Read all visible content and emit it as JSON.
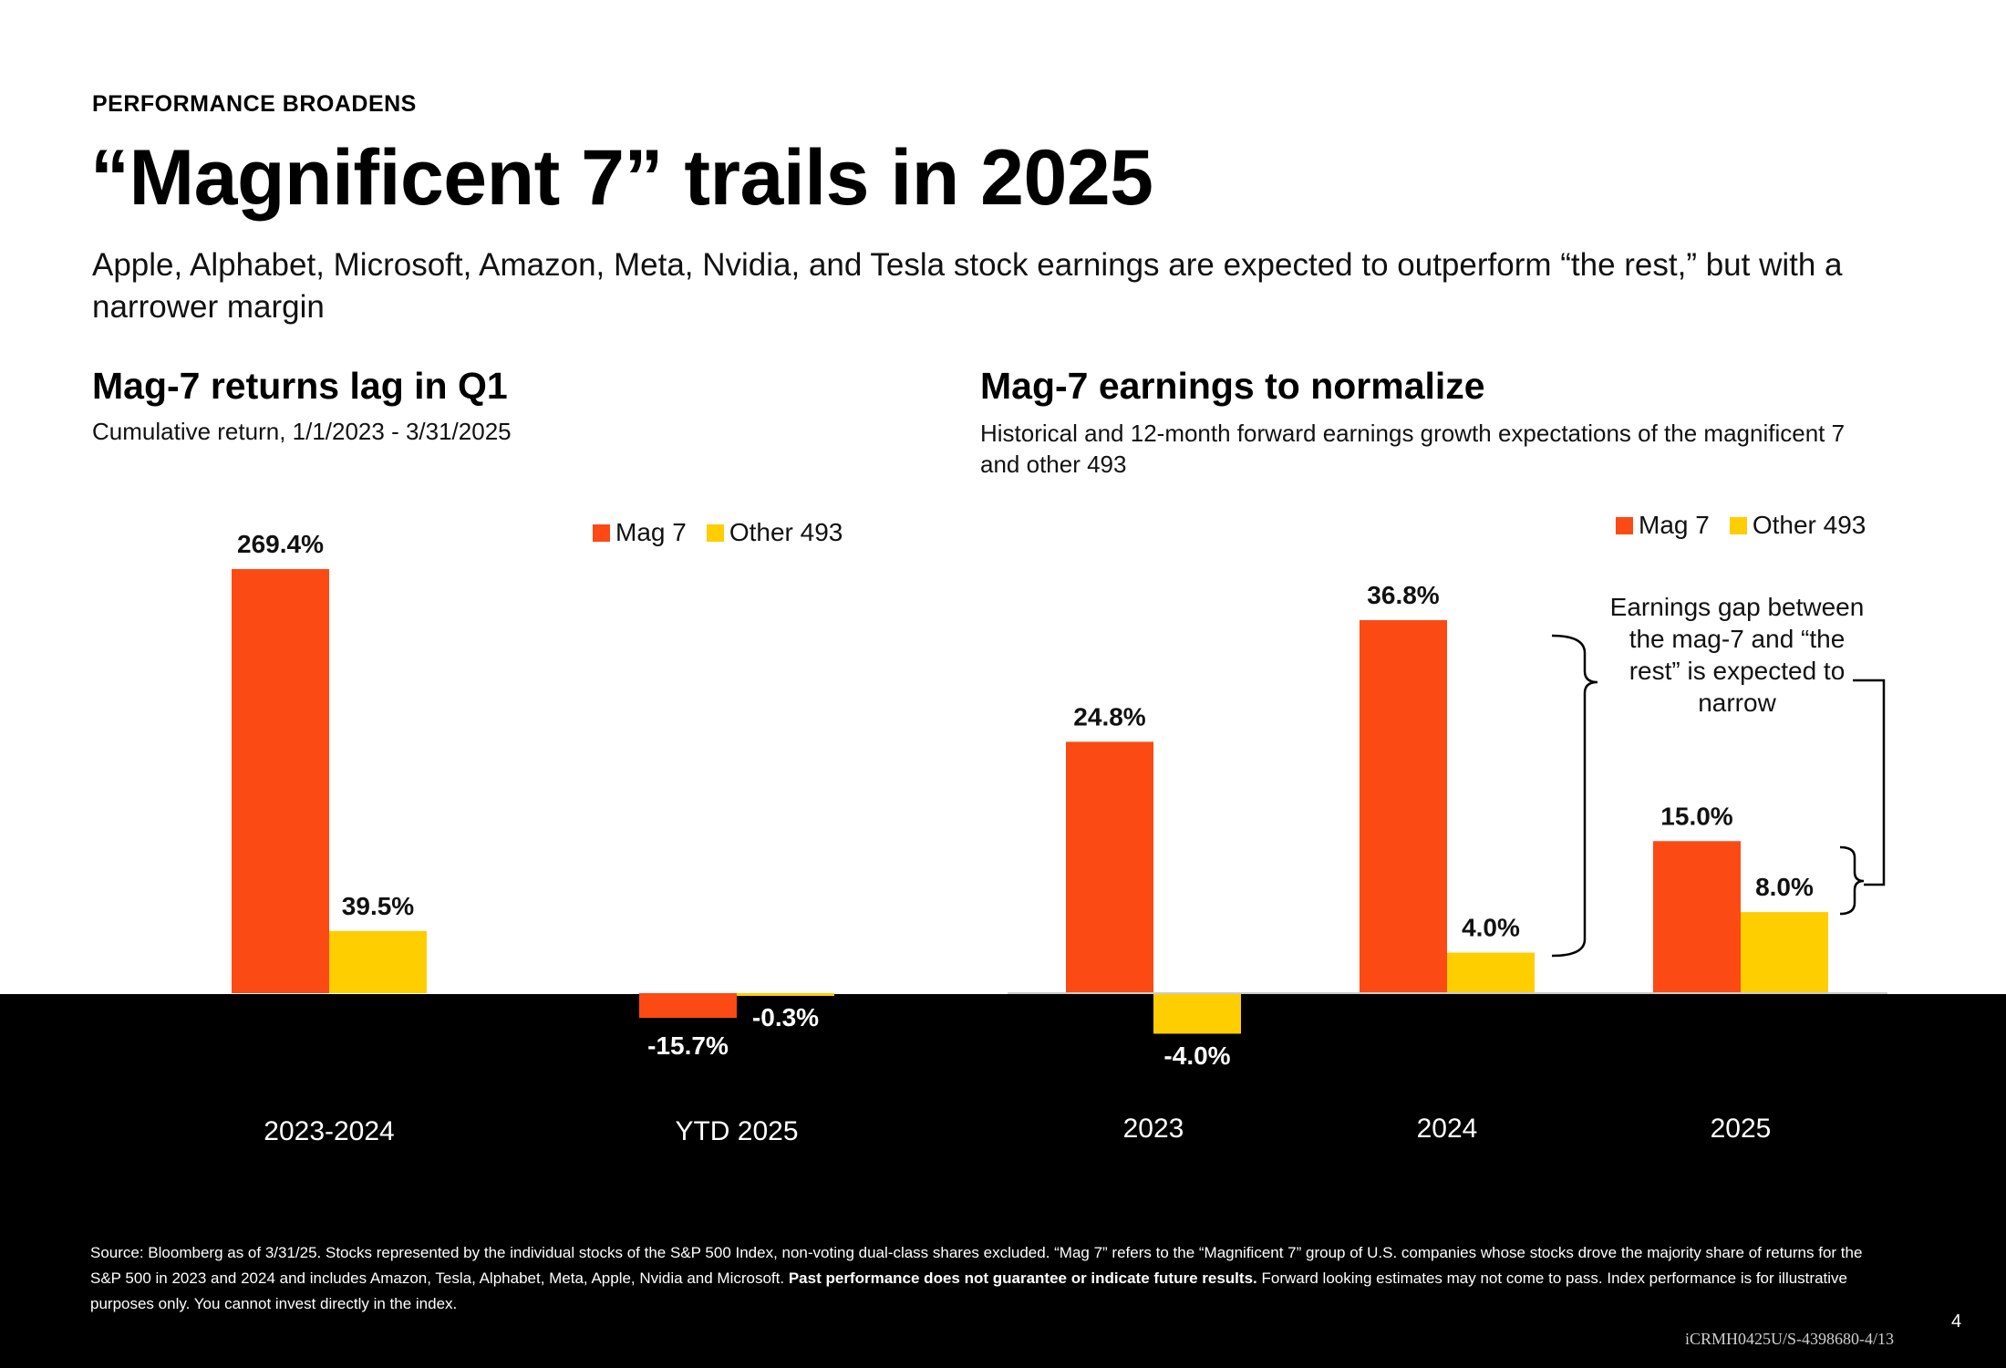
{
  "header": {
    "eyebrow": "PERFORMANCE BROADENS",
    "title": "“Magnificent 7” trails in 2025",
    "subtitle": "Apple, Alphabet, Microsoft, Amazon, Meta, Nvidia, and Tesla stock earnings are expected to outperform “the rest,” but with a narrower margin"
  },
  "left_panel": {
    "title": "Mag-7 returns lag in Q1",
    "subtitle": "Cumulative return, 1/1/2023 - 3/31/2025"
  },
  "right_panel": {
    "title": "Mag-7 earnings to normalize",
    "subtitle": "Historical and 12-month forward earnings growth expectations of the magnificent 7 and other 493",
    "annotation": "Earnings gap between the mag-7 and “the rest” is expected to narrow"
  },
  "legend": {
    "mag7": "Mag 7",
    "other": "Other 493"
  },
  "colors": {
    "mag7": "#FC4A14",
    "other": "#FFCE00",
    "background_bottom": "#000000"
  },
  "chart_data": [
    {
      "type": "bar",
      "title": "Mag-7 returns lag in Q1",
      "categories": [
        "2023-2024",
        "YTD 2025"
      ],
      "series": [
        {
          "name": "Mag 7",
          "values": [
            269.4,
            -15.7
          ],
          "labels": [
            "269.4%",
            "-15.7%"
          ]
        },
        {
          "name": "Other 493",
          "values": [
            39.5,
            -0.3
          ],
          "labels": [
            "39.5%",
            "-0.3%"
          ]
        }
      ],
      "ylim": [
        -50,
        280
      ],
      "legend": "top-right"
    },
    {
      "type": "bar",
      "title": "Mag-7 earnings to normalize",
      "categories": [
        "2023",
        "2024",
        "2025"
      ],
      "series": [
        {
          "name": "Mag 7",
          "values": [
            24.8,
            36.8,
            15.0
          ],
          "labels": [
            "24.8%",
            "36.8%",
            "15.0%"
          ]
        },
        {
          "name": "Other 493",
          "values": [
            -4.0,
            4.0,
            8.0
          ],
          "labels": [
            "-4.0%",
            "4.0%",
            "8.0%"
          ]
        }
      ],
      "ylim": [
        -10,
        40
      ],
      "legend": "top-right"
    }
  ],
  "footer": {
    "source_part1": "Source: Bloomberg as of 3/31/25. Stocks represented by the individual stocks of the S&P 500 Index, non-voting dual-class shares excluded. “Mag 7” refers to the “Magnificent 7” group of U.S. companies whose stocks drove the majority share of returns for the S&P 500 in 2023 and 2024 and includes Amazon, Tesla, Alphabet, Meta, Apple, Nvidia and Microsoft.",
    "source_bold": "Past performance does not guarantee or indicate future results.",
    "source_part2": "Forward looking estimates may not come to pass. Index performance is for illustrative purposes only. You cannot invest directly in the index.",
    "page_number": "4",
    "code": "iCRMH0425U/S-4398680-4/13"
  }
}
